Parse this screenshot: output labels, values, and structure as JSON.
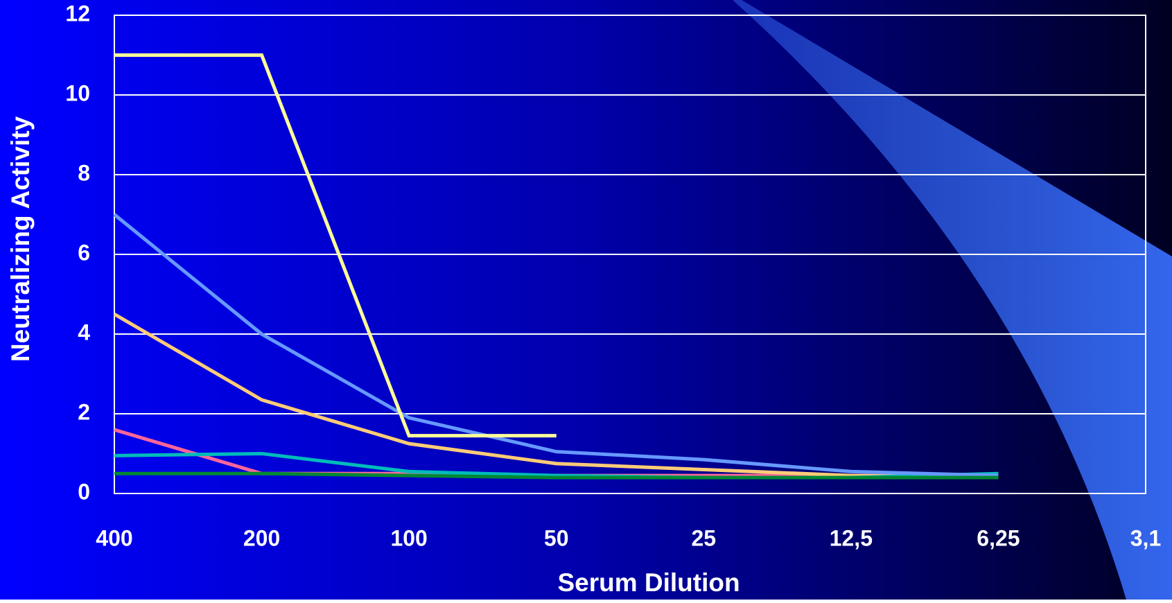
{
  "chart_data": {
    "type": "line",
    "x_label": "Serum Dilution",
    "y_label": "Neutralizing Activity",
    "categories": [
      "400",
      "200",
      "100",
      "50",
      "25",
      "12,5",
      "6,25",
      "3,1"
    ],
    "ylim": [
      0,
      12
    ],
    "yticks": [
      0,
      2,
      4,
      6,
      8,
      10,
      12
    ],
    "grid": true,
    "series": [
      {
        "color": "#ff6699",
        "values": [
          1.6,
          0.5,
          0.5,
          0.45,
          0.45,
          0.45,
          0.45,
          null
        ]
      },
      {
        "color": "#ffcc77",
        "values": [
          4.5,
          2.35,
          1.25,
          0.75,
          0.6,
          0.45,
          0.4,
          null
        ]
      },
      {
        "color": "#00bbbb",
        "values": [
          0.95,
          1.0,
          0.55,
          0.45,
          0.4,
          0.4,
          0.5,
          null
        ]
      },
      {
        "color": "#6699ff",
        "values": [
          7,
          4,
          1.9,
          1.05,
          0.85,
          0.55,
          0.45,
          null
        ]
      },
      {
        "color": "#ffff99",
        "values": [
          11,
          11,
          1.45,
          1.45,
          null,
          null,
          null,
          null
        ]
      },
      {
        "color": "#008833",
        "values": [
          0.5,
          0.5,
          0.45,
          0.4,
          0.4,
          0.4,
          0.4,
          null
        ]
      }
    ]
  }
}
